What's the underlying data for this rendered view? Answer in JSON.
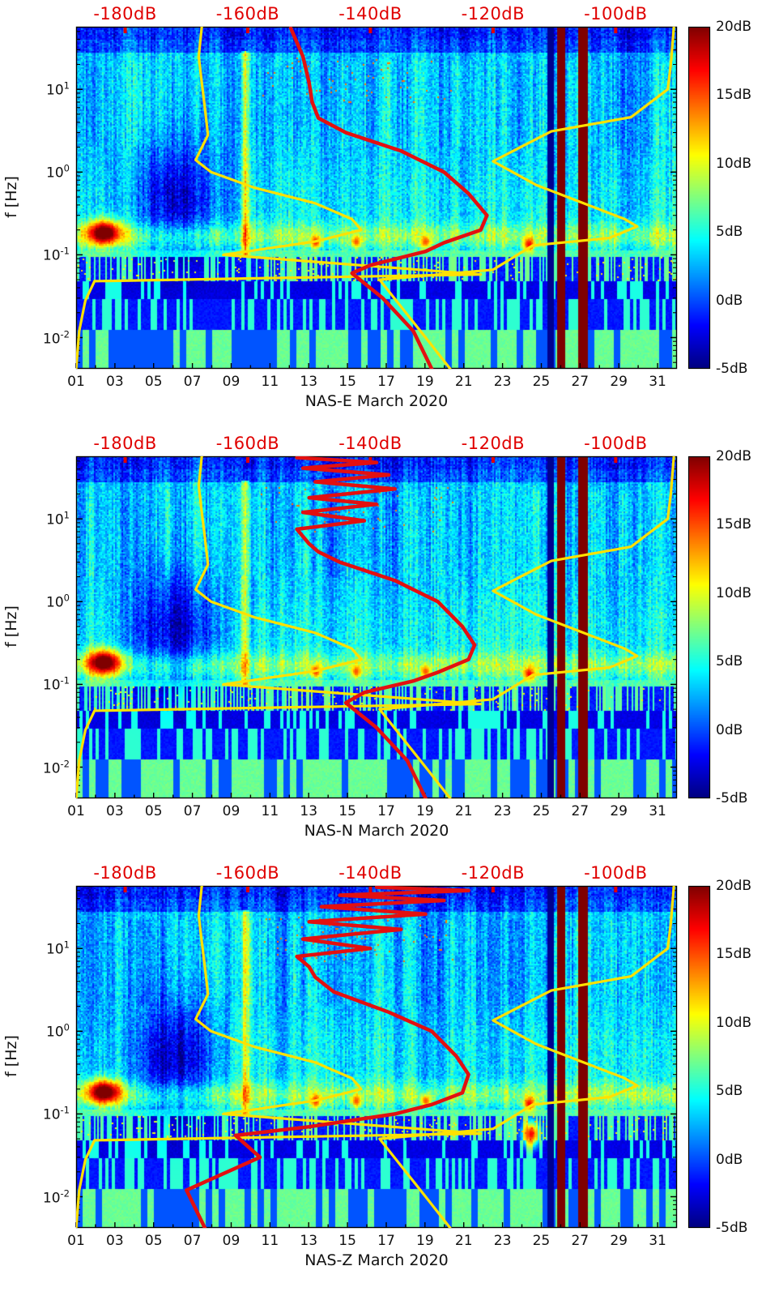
{
  "figure": {
    "ylabel": "f [Hz]",
    "top_axis_labels": [
      "-180dB",
      "-160dB",
      "-140dB",
      "-120dB",
      "-100dB"
    ],
    "top_axis_values": [
      -180,
      -160,
      -140,
      -120,
      -100
    ],
    "x_tick_labels": [
      "01",
      "03",
      "05",
      "07",
      "09",
      "11",
      "13",
      "15",
      "17",
      "19",
      "21",
      "23",
      "25",
      "27",
      "29",
      "31"
    ],
    "x_tick_days": [
      1,
      3,
      5,
      7,
      9,
      11,
      13,
      15,
      17,
      19,
      21,
      23,
      25,
      27,
      29,
      31
    ],
    "y_tick_exponents": [
      1,
      0,
      -1,
      -2
    ],
    "colorbar_labels": [
      "20dB",
      "15dB",
      "10dB",
      "5dB",
      "0dB",
      "-5dB"
    ],
    "colorbar_values": [
      20,
      15,
      10,
      5,
      0,
      -5
    ],
    "colors": {
      "top_axis_red": "#e00000",
      "overlay_yellow": "#ffe100",
      "overlay_red": "#e31010",
      "text": "#111111"
    }
  },
  "chart_data": {
    "type": "heatmap",
    "description": "Three stacked seismic power spectral density spectrograms (station NAS, components E, N, Z) for March 2020. Jet-colormap dB level vs day of month (x) and frequency in Hz (log y). Yellow low/high reference noise-model curves and a red median PSD curve are overlaid, read against the red top dB axis.",
    "x_axis": {
      "label": "day of March 2020",
      "range_days": [
        1,
        32
      ]
    },
    "y_axis": {
      "label": "f [Hz]",
      "scale": "log10",
      "range_hz": [
        0.0042,
        57
      ],
      "tick_exponents": [
        1,
        0,
        -1,
        -2
      ]
    },
    "color_axis": {
      "colormap": "jet",
      "range_db": [
        -5,
        20
      ],
      "ticks_db": [
        20,
        15,
        10,
        5,
        0,
        -5
      ]
    },
    "top_axis": {
      "unit": "dB",
      "tick_values": [
        -180,
        -160,
        -140,
        -120,
        -100
      ],
      "plot_range_db": [
        -188,
        -90
      ]
    },
    "panels": [
      {
        "title": "NAS-E March 2020",
        "red_curve_db_hz": [
          [
            -153,
            55
          ],
          [
            -151,
            25
          ],
          [
            -150,
            12
          ],
          [
            -149.5,
            7
          ],
          [
            -148.5,
            4.5
          ],
          [
            -144,
            3
          ],
          [
            -135,
            1.8
          ],
          [
            -128,
            1.0
          ],
          [
            -124,
            0.55
          ],
          [
            -121,
            0.3
          ],
          [
            -122,
            0.2
          ],
          [
            -128,
            0.14
          ],
          [
            -131,
            0.11
          ],
          [
            -140,
            0.075
          ],
          [
            -143,
            0.06
          ],
          [
            -138,
            0.03
          ],
          [
            -133,
            0.012
          ],
          [
            -130,
            0.0042
          ]
        ]
      },
      {
        "title": "NAS-N March 2020",
        "red_curve_db_hz": [
          [
            -152,
            55
          ],
          [
            -139,
            48
          ],
          [
            -151,
            41
          ],
          [
            -137,
            34
          ],
          [
            -149,
            28
          ],
          [
            -136,
            23
          ],
          [
            -150,
            18
          ],
          [
            -139,
            15
          ],
          [
            -151,
            12
          ],
          [
            -141,
            9.5
          ],
          [
            -152,
            7.5
          ],
          [
            -150,
            5
          ],
          [
            -148.5,
            4
          ],
          [
            -145,
            3
          ],
          [
            -136,
            1.8
          ],
          [
            -129,
            1.0
          ],
          [
            -125,
            0.5
          ],
          [
            -123,
            0.3
          ],
          [
            -124,
            0.2
          ],
          [
            -129,
            0.14
          ],
          [
            -133,
            0.11
          ],
          [
            -141,
            0.08
          ],
          [
            -144,
            0.06
          ],
          [
            -139,
            0.03
          ],
          [
            -134,
            0.012
          ],
          [
            -131,
            0.0042
          ]
        ]
      },
      {
        "title": "NAS-Z March 2020",
        "red_curve_db_hz": [
          [
            -139,
            55
          ],
          [
            -124,
            50
          ],
          [
            -145,
            44
          ],
          [
            -128,
            38
          ],
          [
            -148,
            32
          ],
          [
            -131,
            26
          ],
          [
            -150,
            21
          ],
          [
            -135,
            17
          ],
          [
            -151,
            13
          ],
          [
            -140,
            10
          ],
          [
            -152,
            8
          ],
          [
            -150,
            6
          ],
          [
            -149,
            4.5
          ],
          [
            -146,
            3
          ],
          [
            -137,
            1.7
          ],
          [
            -130,
            1.0
          ],
          [
            -126,
            0.5
          ],
          [
            -124,
            0.3
          ],
          [
            -125,
            0.18
          ],
          [
            -130,
            0.13
          ],
          [
            -136,
            0.1
          ],
          [
            -150,
            0.07
          ],
          [
            -162,
            0.055
          ],
          [
            -158,
            0.03
          ],
          [
            -170,
            0.012
          ],
          [
            -167,
            0.0042
          ]
        ]
      }
    ],
    "reference_curves": {
      "yellow_low_db_hz": [
        [
          -188,
          0.0042
        ],
        [
          -187.5,
          0.012
        ],
        [
          -186.5,
          0.028
        ],
        [
          -185,
          0.048
        ],
        [
          -122,
          0.058
        ],
        [
          -164,
          0.1
        ],
        [
          -149,
          0.145
        ],
        [
          -141.5,
          0.2
        ],
        [
          -143,
          0.27
        ],
        [
          -149,
          0.42
        ],
        [
          -159,
          0.65
        ],
        [
          -166,
          1.0
        ],
        [
          -168.5,
          1.4
        ],
        [
          -166.5,
          2.8
        ],
        [
          -167,
          6
        ],
        [
          -167.5,
          12
        ],
        [
          -168,
          25
        ],
        [
          -167.5,
          57
        ]
      ],
      "yellow_high_db_hz": [
        [
          -90.5,
          57
        ],
        [
          -91,
          20
        ],
        [
          -91.5,
          10
        ],
        [
          -97.5,
          4.6
        ],
        [
          -110.5,
          3.1
        ],
        [
          -120,
          1.35
        ],
        [
          -113,
          0.7
        ],
        [
          -98.5,
          0.27
        ],
        [
          -96.5,
          0.22
        ],
        [
          -101,
          0.16
        ],
        [
          -113.5,
          0.13
        ],
        [
          -120,
          0.066
        ],
        [
          -138.5,
          0.05
        ],
        [
          -131,
          0.01
        ],
        [
          -127,
          0.0042
        ]
      ]
    },
    "features": [
      {
        "name": "quiet-period",
        "day": [
          3.6,
          8.6
        ],
        "freq": [
          0.09,
          2.5
        ],
        "level_db": -4
      },
      {
        "name": "microseism-hot-spot",
        "day": [
          1.5,
          3.3
        ],
        "freq": [
          0.14,
          0.24
        ],
        "level_db": 19
      },
      {
        "name": "bright-band",
        "day": [
          9.5,
          9.9
        ],
        "freq": [
          0.1,
          30
        ],
        "level_db": 11
      },
      {
        "name": "microseism-patch",
        "day": [
          13.1,
          13.6
        ],
        "freq": [
          0.12,
          0.17
        ],
        "level_db": 14
      },
      {
        "name": "microseism-patch",
        "day": [
          15.2,
          15.7
        ],
        "freq": [
          0.12,
          0.17
        ],
        "level_db": 13
      },
      {
        "name": "microseism-patch",
        "day": [
          18.8,
          19.3
        ],
        "freq": [
          0.12,
          0.17
        ],
        "level_db": 13
      },
      {
        "name": "microseism-patch",
        "day": [
          24.1,
          24.7
        ],
        "freq": [
          0.11,
          0.16
        ],
        "level_db": 15
      },
      {
        "name": "low-freq-patch",
        "panel": 2,
        "day": [
          24.1,
          24.9
        ],
        "freq": [
          0.04,
          0.08
        ],
        "level_db": 15
      },
      {
        "name": "dark-blue-band",
        "day": [
          25.3,
          25.7
        ],
        "freq": [
          0.0042,
          57
        ],
        "level_db": -5
      },
      {
        "name": "saturated-band-1",
        "day": [
          25.85,
          26.3
        ],
        "freq": [
          0.0042,
          57
        ],
        "level_db": 20
      },
      {
        "name": "saturated-band-2",
        "day": [
          26.95,
          27.4
        ],
        "freq": [
          0.0042,
          57
        ],
        "level_db": 20
      }
    ]
  }
}
